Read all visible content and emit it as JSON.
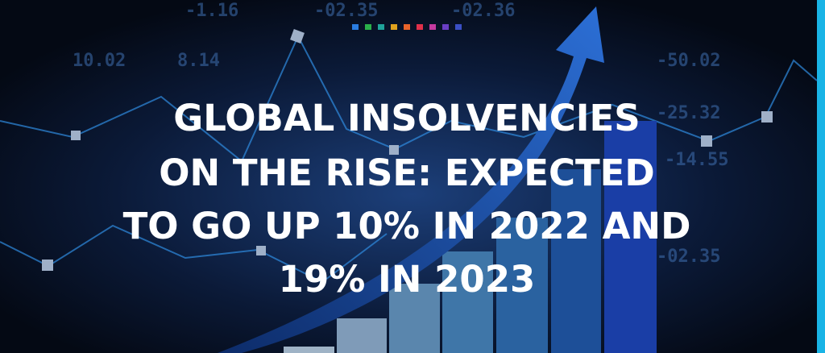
{
  "headline": [
    "GLOBAL INSOLVENCIES",
    "ON THE RISE: EXPECTED",
    "TO GO UP 10% IN 2022 AND",
    "19% IN 2023"
  ],
  "background_labels": [
    "-1.16",
    "-02.35",
    "-02.36",
    "10.02",
    "8.14",
    "-50.02",
    "-25.32",
    "-14.55",
    "-02.35"
  ]
}
